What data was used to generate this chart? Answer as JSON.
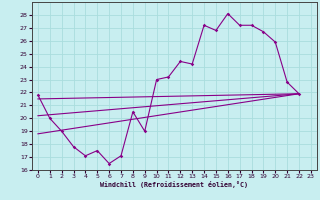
{
  "xlabel": "Windchill (Refroidissement éolien,°C)",
  "bg_color": "#c8eef0",
  "grid_color": "#aadddd",
  "line_color": "#880088",
  "xlim": [
    -0.5,
    23.5
  ],
  "ylim": [
    16,
    29
  ],
  "yticks": [
    16,
    17,
    18,
    19,
    20,
    21,
    22,
    23,
    24,
    25,
    26,
    27,
    28
  ],
  "xticks": [
    0,
    1,
    2,
    3,
    4,
    5,
    6,
    7,
    8,
    9,
    10,
    11,
    12,
    13,
    14,
    15,
    16,
    17,
    18,
    19,
    20,
    21,
    22,
    23
  ],
  "series1_x": [
    0,
    1,
    2,
    3,
    4,
    5,
    6,
    7,
    8,
    9,
    10,
    11,
    12,
    13,
    14,
    15,
    16,
    17,
    18,
    19,
    20,
    21,
    22
  ],
  "series1_y": [
    21.8,
    20.0,
    19.0,
    17.8,
    17.1,
    17.5,
    16.5,
    17.1,
    20.5,
    19.0,
    23.0,
    23.2,
    24.4,
    24.2,
    27.2,
    26.8,
    28.1,
    27.2,
    27.2,
    26.7,
    25.9,
    22.8,
    21.9
  ],
  "series2_x": [
    0,
    22
  ],
  "series2_y": [
    21.5,
    21.9
  ],
  "series3_x": [
    0,
    22
  ],
  "series3_y": [
    20.2,
    21.9
  ],
  "series4_x": [
    0,
    22
  ],
  "series4_y": [
    18.8,
    21.9
  ]
}
